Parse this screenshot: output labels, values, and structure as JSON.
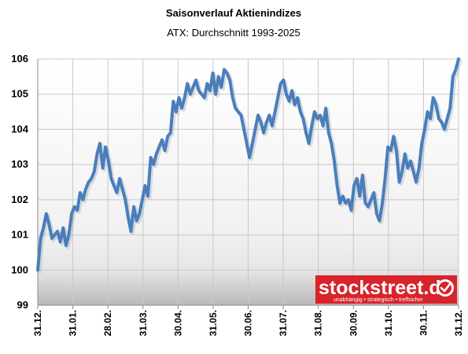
{
  "chart_data": {
    "type": "line",
    "title": "Saisonverlauf Aktienindizes",
    "subtitle": "ATX: Durchschnitt 1993-2025",
    "ylim": [
      99,
      106
    ],
    "yticks": [
      99,
      100,
      101,
      102,
      103,
      104,
      105,
      106
    ],
    "xticks": [
      "31.12.",
      "31.01.",
      "28.02.",
      "31.03.",
      "30.04.",
      "31.05.",
      "30.06.",
      "31.07.",
      "31.08.",
      "30.09.",
      "31.10.",
      "30.11.",
      "31.12."
    ],
    "grid": true,
    "legend": "none",
    "series": [
      {
        "values": [
          100.0,
          100.9,
          101.2,
          101.6,
          101.3,
          100.9,
          101.0,
          101.1,
          100.8,
          101.2,
          100.7,
          101.0,
          101.6,
          101.8,
          101.7,
          102.2,
          102.0,
          102.3,
          102.5,
          102.6,
          102.8,
          103.3,
          103.6,
          102.9,
          103.5,
          103.1,
          102.6,
          102.4,
          102.2,
          102.6,
          102.3,
          102.0,
          101.5,
          101.1,
          101.8,
          101.4,
          101.6,
          102.0,
          102.4,
          102.1,
          103.2,
          103.0,
          103.3,
          103.5,
          103.7,
          103.4,
          103.8,
          103.9,
          104.8,
          104.5,
          104.9,
          104.6,
          104.9,
          105.3,
          105.0,
          105.2,
          105.4,
          105.1,
          105.0,
          104.9,
          105.3,
          105.1,
          105.6,
          105.0,
          105.5,
          105.2,
          105.7,
          105.6,
          105.4,
          104.9,
          104.6,
          104.5,
          104.4,
          104.0,
          103.6,
          103.2,
          103.6,
          104.0,
          104.4,
          104.2,
          103.9,
          104.2,
          104.4,
          104.1,
          104.5,
          104.9,
          105.3,
          105.4,
          105.0,
          104.8,
          105.1,
          104.7,
          104.9,
          104.5,
          104.3,
          103.9,
          103.6,
          104.1,
          104.5,
          104.3,
          104.4,
          104.1,
          104.6,
          103.9,
          103.6,
          103.1,
          102.4,
          101.9,
          102.1,
          101.9,
          102.0,
          101.7,
          102.4,
          102.6,
          102.1,
          102.7,
          101.9,
          101.8,
          102.0,
          102.2,
          101.6,
          101.4,
          101.9,
          102.6,
          103.5,
          103.4,
          103.8,
          103.4,
          102.5,
          102.8,
          103.3,
          102.9,
          103.1,
          102.8,
          102.5,
          102.9,
          103.6,
          104.0,
          104.5,
          104.3,
          104.9,
          104.7,
          104.3,
          104.2,
          104.0,
          104.3,
          104.6,
          105.5,
          105.7,
          106.1
        ]
      }
    ]
  },
  "logo": {
    "name": "stockstreet.de",
    "tagline": "unabhängig • strategisch • treffsicher",
    "accent": "#d8232a",
    "icon": "check-badge-icon"
  },
  "colors": {
    "line": "#4a7ebb",
    "plot_bg": "#f2f2f2",
    "shade": "#d9d9d9"
  }
}
